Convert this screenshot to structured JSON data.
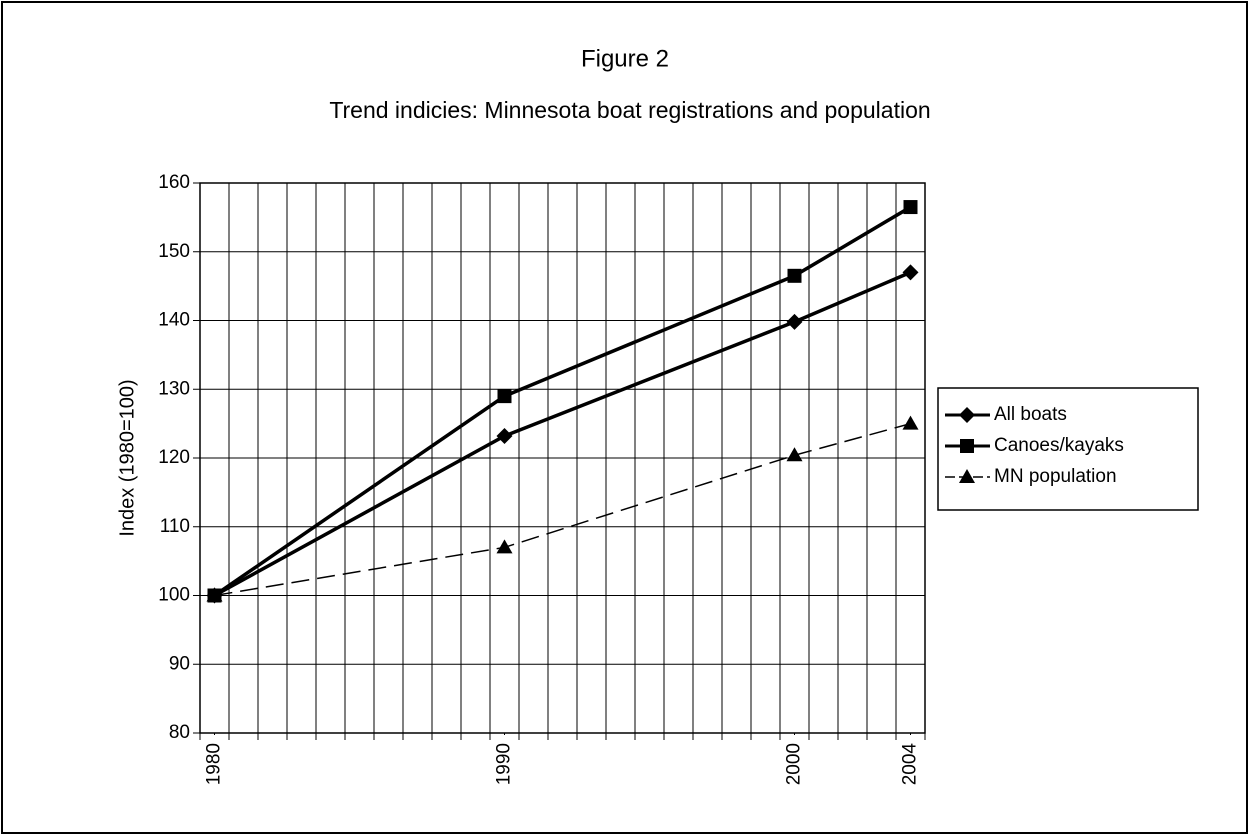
{
  "chart_data": {
    "type": "line",
    "title": "Figure 2",
    "subtitle": "Trend indicies: Minnesota boat registrations and population",
    "y_label": "Index (1980=100)",
    "x": [
      1980,
      1990,
      2000,
      2004
    ],
    "series": [
      {
        "name": "All boats",
        "color": "#000000",
        "marker": "diamond",
        "dashed": false,
        "values": [
          100,
          123.2,
          139.8,
          147
        ]
      },
      {
        "name": "Canoes/kayaks",
        "color": "#000000",
        "marker": "square",
        "dashed": false,
        "values": [
          100,
          129,
          146.5,
          156.5
        ]
      },
      {
        "name": "MN population",
        "color": "#000000",
        "marker": "triangle",
        "dashed": true,
        "values": [
          100,
          107,
          120.4,
          125
        ]
      }
    ],
    "xlim": [
      1979.5,
      2004.5
    ],
    "xticks": [
      1980,
      1990,
      2000,
      2004
    ],
    "ylim": [
      80,
      160
    ],
    "yticks": [
      80,
      90,
      100,
      110,
      120,
      130,
      140,
      150,
      160
    ],
    "grid": true,
    "legend": "right"
  }
}
